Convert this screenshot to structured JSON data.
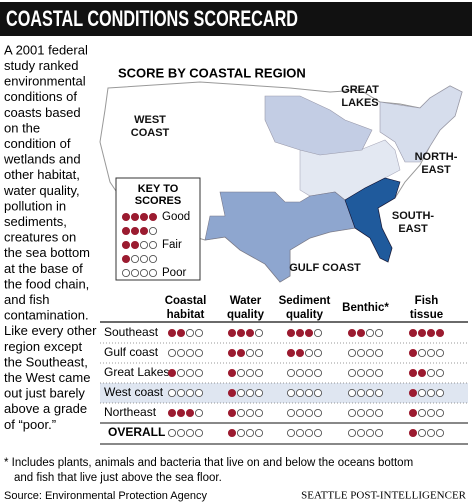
{
  "title": "COASTAL CONDITIONS SCORECARD",
  "intro_lines": [
    "A 2001 federal",
    "study ranked",
    "environmental",
    "conditions of",
    "coasts based",
    "on the",
    "condition of",
    "wetlands and",
    "other habitat,",
    "water quality,",
    "pollution in",
    "sediments,",
    "creatures on",
    "the sea bottom",
    "at the base of",
    "the food chain,",
    "and fish",
    "contamination.",
    "Like every other",
    "region except",
    "the Southeast,",
    "the West came",
    "out just barely",
    "above a grade",
    "of “poor.”"
  ],
  "map": {
    "title": "SCORE BY COASTAL REGION",
    "regions": [
      {
        "label": [
          "WEST",
          "COAST"
        ]
      },
      {
        "label": [
          "GREAT",
          "LAKES"
        ]
      },
      {
        "label": [
          "NORTH-",
          "EAST"
        ]
      },
      {
        "label": [
          "SOUTH-",
          "EAST"
        ]
      },
      {
        "label": [
          "GULF COAST"
        ]
      }
    ]
  },
  "key": {
    "title": [
      "KEY TO",
      "SCORES"
    ],
    "max_score": 4,
    "levels": [
      {
        "score": 4,
        "label": "Good"
      },
      {
        "score": 3
      },
      {
        "score": 2,
        "label": "Fair"
      },
      {
        "score": 1
      },
      {
        "score": 0,
        "label": "Poor"
      }
    ]
  },
  "table": {
    "columns": [
      [
        "Coastal",
        "habitat"
      ],
      [
        "Water",
        "quality"
      ],
      [
        "Sediment",
        "quality"
      ],
      [
        "Benthic*"
      ],
      [
        "Fish",
        "tissue"
      ]
    ],
    "rows": [
      {
        "label": "Southeast",
        "scores": [
          2,
          3,
          3,
          2,
          4
        ]
      },
      {
        "label": "Gulf coast",
        "scores": [
          0,
          2,
          2,
          0,
          1
        ]
      },
      {
        "label": "Great Lakes",
        "scores": [
          1,
          1,
          0,
          0,
          2
        ]
      },
      {
        "label": "West coast",
        "scores": [
          0,
          1,
          0,
          0,
          1
        ]
      },
      {
        "label": "Northeast",
        "scores": [
          3,
          1,
          0,
          0,
          1
        ]
      },
      {
        "label": "OVERALL",
        "scores": [
          0,
          1,
          0,
          0,
          1
        ]
      }
    ]
  },
  "footnote": [
    "* Includes plants, animals and bacteria that live on and below the oceans bottom",
    "and fish that live just above the sea floor."
  ],
  "source": "Source: Environmental Protection Agency",
  "credit": "SEATTLE POST-INTELLIGENCER"
}
